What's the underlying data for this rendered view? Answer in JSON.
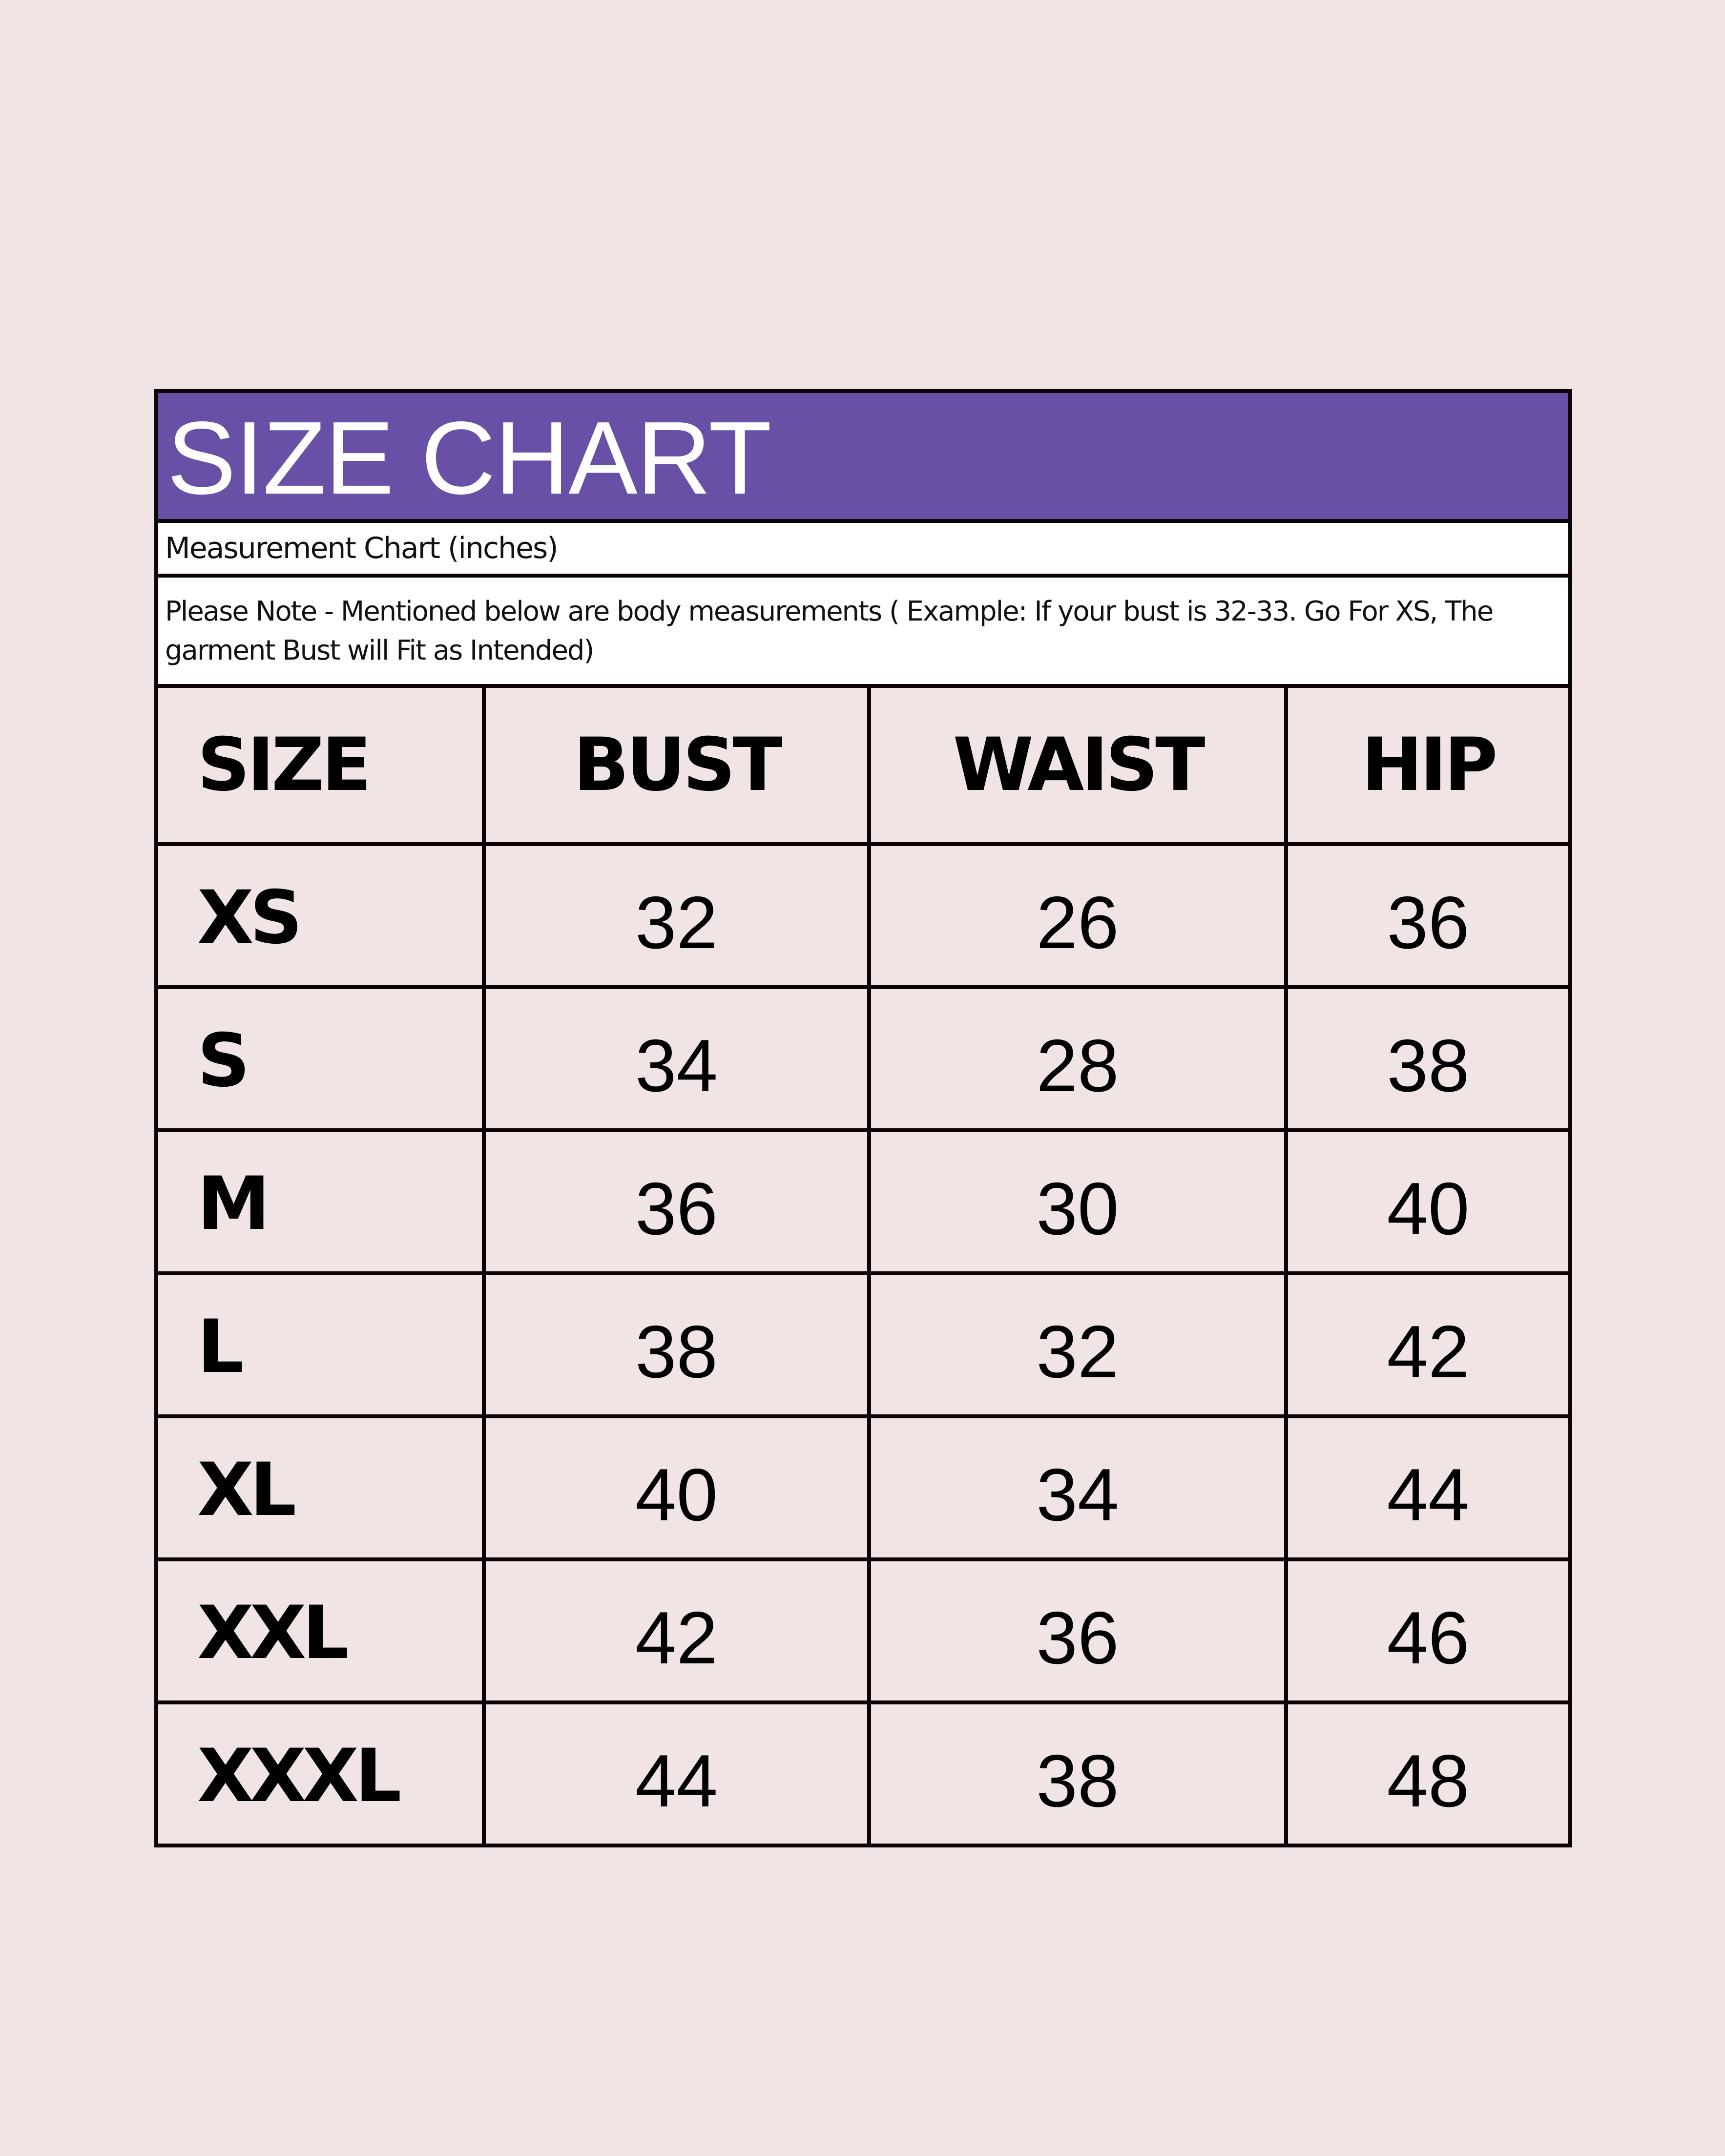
{
  "title": "SIZE CHART",
  "subtitle": "Measurement Chart (inches)",
  "note": "Please Note - Mentioned below are body measurements ( Example: If your bust is 32-33. Go For XS, The garment Bust will Fit as Intended)",
  "colors": {
    "background": "#f1e4e5",
    "title_band": "#6750a6",
    "border": "#0c0306"
  },
  "columns": [
    "SIZE",
    "BUST",
    "WAIST",
    "HIP"
  ],
  "rows": [
    {
      "size": "XS",
      "bust": "32",
      "waist": "26",
      "hip": "36"
    },
    {
      "size": "S",
      "bust": "34",
      "waist": "28",
      "hip": "38"
    },
    {
      "size": "M",
      "bust": "36",
      "waist": "30",
      "hip": "40"
    },
    {
      "size": "L",
      "bust": "38",
      "waist": "32",
      "hip": "42"
    },
    {
      "size": "XL",
      "bust": "40",
      "waist": "34",
      "hip": "44"
    },
    {
      "size": "XXL",
      "bust": "42",
      "waist": "36",
      "hip": "46"
    },
    {
      "size": "XXXL",
      "bust": "44",
      "waist": "38",
      "hip": "48"
    }
  ]
}
